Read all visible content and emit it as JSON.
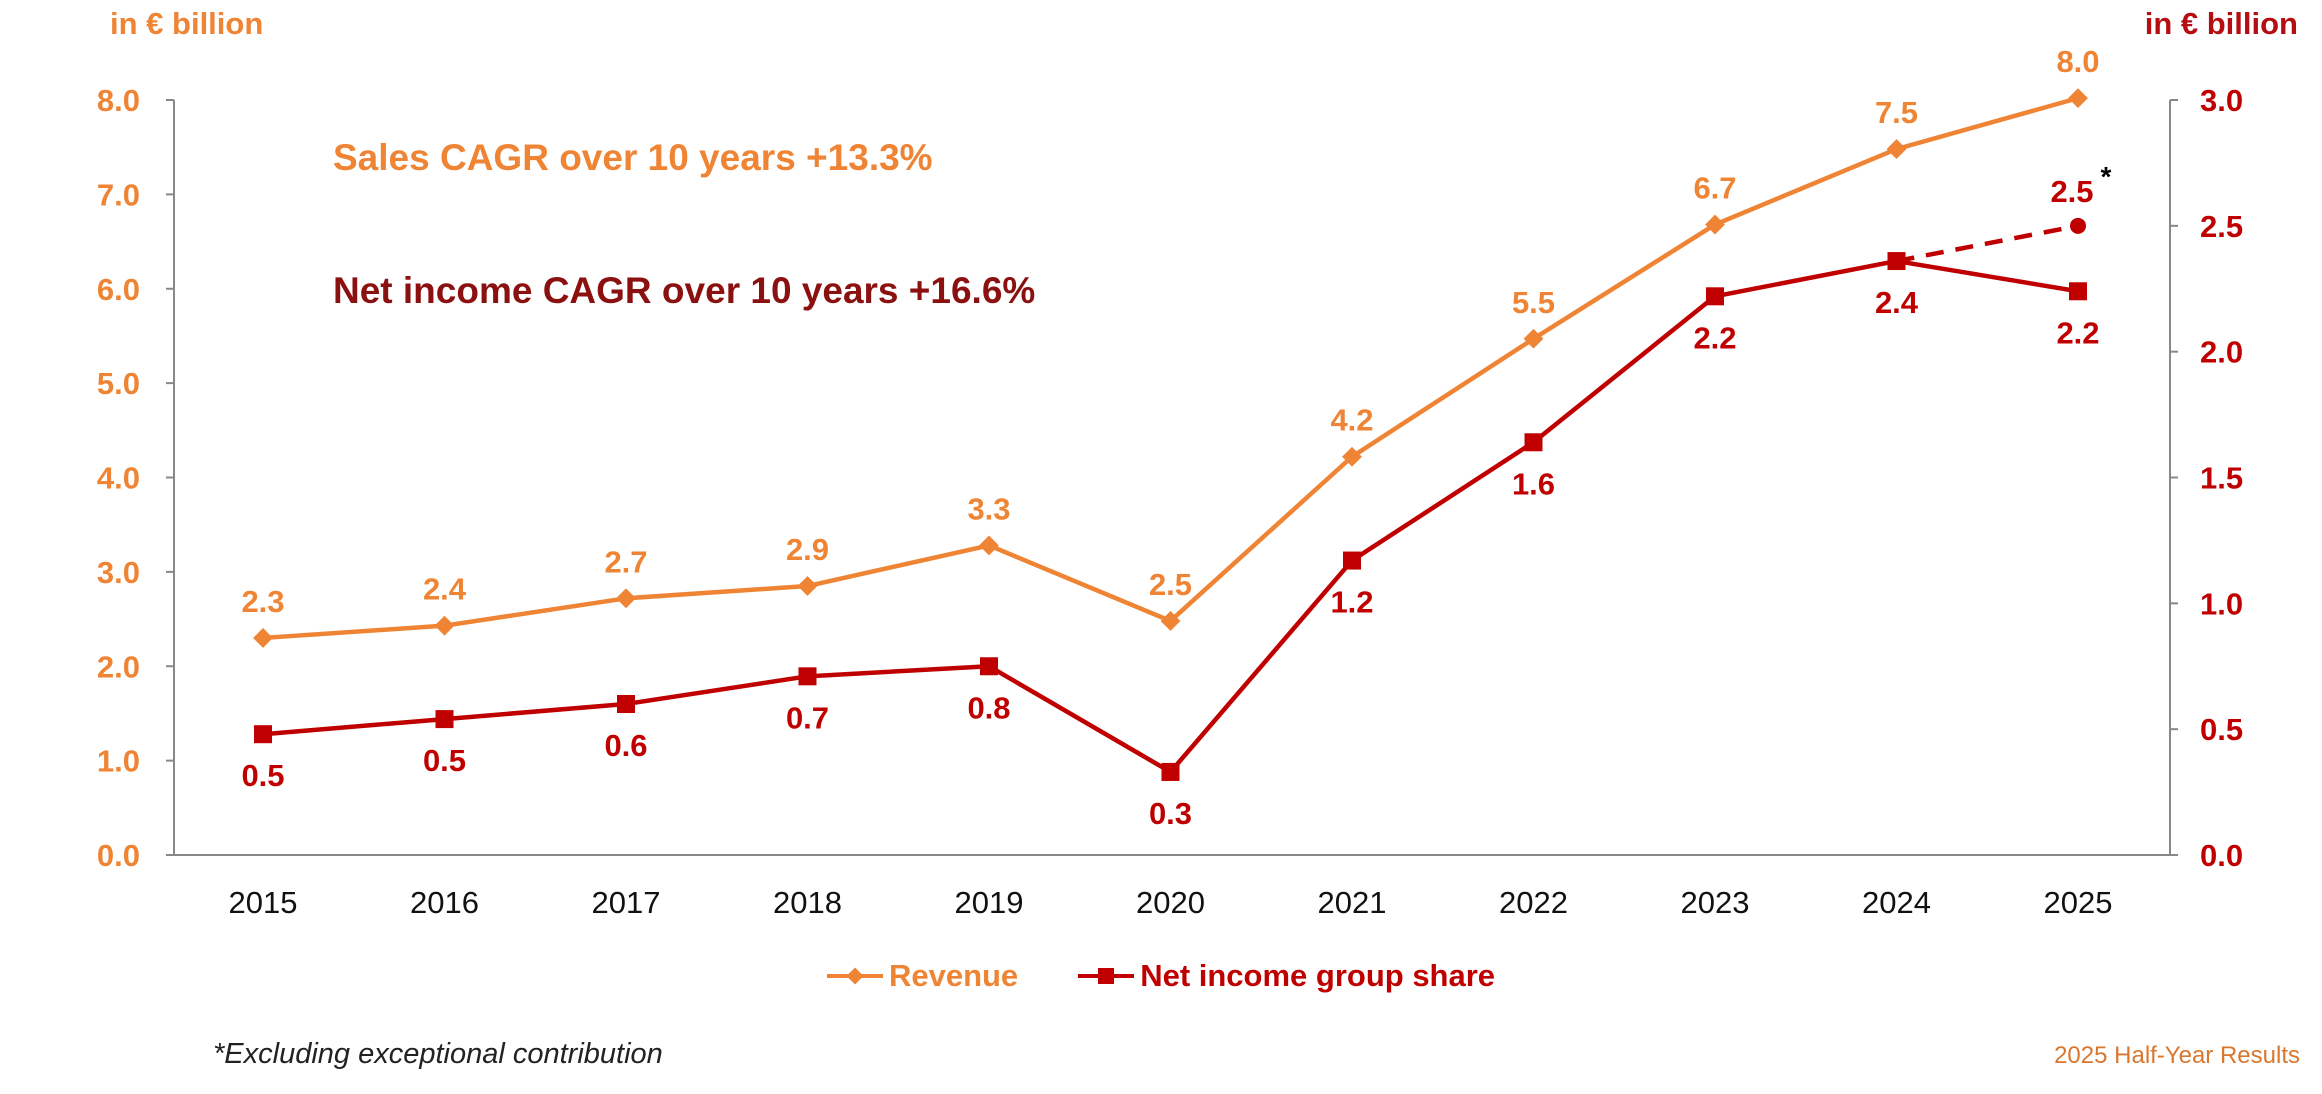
{
  "colors": {
    "revenue": "#ee8434",
    "net_income": "#c00000",
    "cagr_net_income": "#8b1010",
    "axis": "#888888"
  },
  "units": {
    "left": "in € billion",
    "right": "in € billion"
  },
  "annotations": {
    "sales_cagr": "Sales CAGR over 10 years +13.3%",
    "net_income_cagr": "Net income CAGR over 10 years +16.6%",
    "asterisk": "*"
  },
  "footnote": "*Excluding exceptional contribution",
  "footer_right": "2025 Half-Year Results",
  "legend": {
    "revenue": "Revenue",
    "net_income": "Net income group share"
  },
  "chart_data": {
    "type": "line",
    "categories": [
      "2015",
      "2016",
      "2017",
      "2018",
      "2019",
      "2020",
      "2021",
      "2022",
      "2023",
      "2024",
      "2025"
    ],
    "y_left": {
      "ylim": [
        0,
        8
      ],
      "ticks": [
        "0.0",
        "1.0",
        "2.0",
        "3.0",
        "4.0",
        "5.0",
        "6.0",
        "7.0",
        "8.0"
      ]
    },
    "y_right": {
      "ylim": [
        0,
        3
      ],
      "ticks": [
        "0.0",
        "0.5",
        "1.0",
        "1.5",
        "2.0",
        "2.5",
        "3.0"
      ]
    },
    "series": [
      {
        "name": "Revenue",
        "axis": "left",
        "marker": "diamond",
        "values": [
          2.3,
          2.43,
          2.72,
          2.85,
          3.28,
          2.48,
          4.22,
          5.47,
          6.68,
          7.48,
          8.02
        ],
        "labels": [
          "2.3",
          "2.4",
          "2.7",
          "2.9",
          "3.3",
          "2.5",
          "4.2",
          "5.5",
          "6.7",
          "7.5",
          "8.0"
        ]
      },
      {
        "name": "Net income group share",
        "axis": "right",
        "marker": "square",
        "values": [
          0.48,
          0.54,
          0.6,
          0.71,
          0.75,
          0.33,
          1.17,
          1.64,
          2.22,
          2.36,
          2.24
        ],
        "labels": [
          "0.5",
          "0.5",
          "0.6",
          "0.7",
          "0.8",
          "0.3",
          "1.2",
          "1.6",
          "2.2",
          "2.4",
          "2.2"
        ]
      }
    ],
    "dashed_extension": {
      "from_category": "2024",
      "from_value": 2.36,
      "to_category": "2025",
      "to_value": 2.5,
      "label": "2.5"
    },
    "grid": false,
    "legend_position": "bottom"
  }
}
